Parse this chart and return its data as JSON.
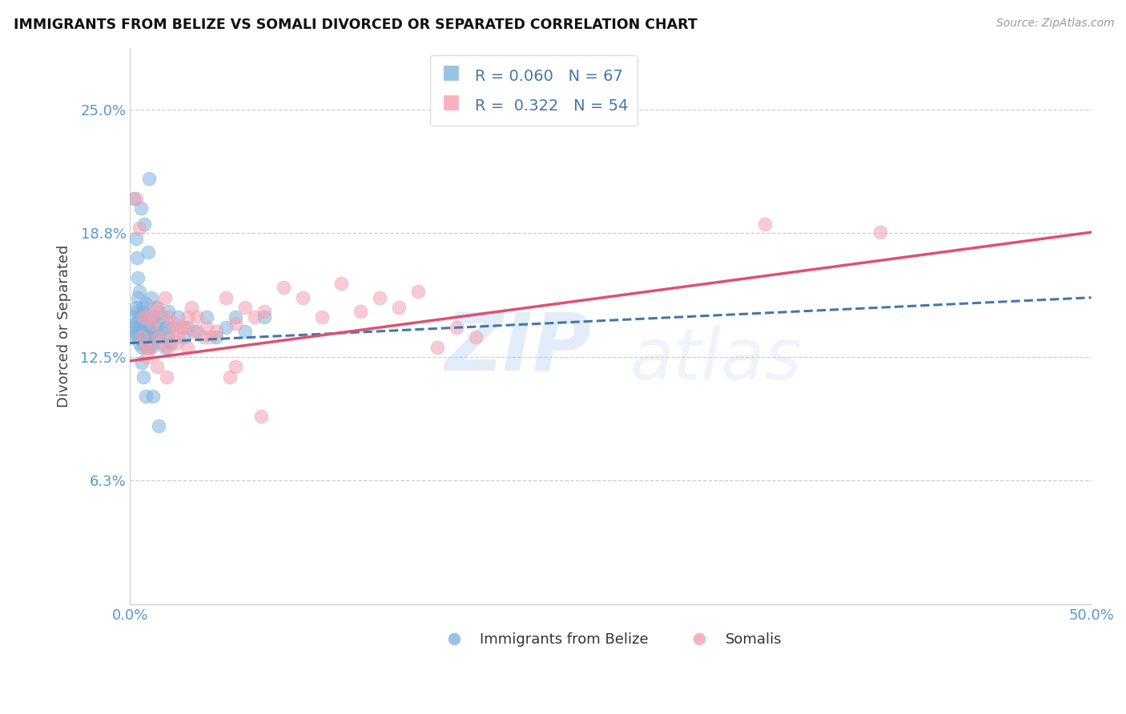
{
  "title": "IMMIGRANTS FROM BELIZE VS SOMALI DIVORCED OR SEPARATED CORRELATION CHART",
  "source_text": "Source: ZipAtlas.com",
  "ylabel": "Divorced or Separated",
  "legend_label_1": "Immigrants from Belize",
  "legend_label_2": "Somalis",
  "R1": 0.06,
  "N1": 67,
  "R2": 0.322,
  "N2": 54,
  "color_blue": "#7EB3E0",
  "color_pink": "#F4A0B0",
  "trendline_blue": "#4477AA",
  "trendline_pink": "#E05070",
  "watermark_zip": "ZIP",
  "watermark_atlas": "atlas",
  "xlim": [
    0.0,
    50.0
  ],
  "ylim": [
    0.0,
    28.125
  ],
  "xticks": [
    0.0,
    10.0,
    20.0,
    30.0,
    40.0,
    50.0
  ],
  "yticks": [
    0.0,
    6.25,
    12.5,
    18.75,
    25.0
  ],
  "ytick_labels": [
    "",
    "6.3%",
    "12.5%",
    "18.8%",
    "25.0%"
  ],
  "blue_trend_x0": 0.0,
  "blue_trend_y0": 13.2,
  "blue_trend_x1": 50.0,
  "blue_trend_y1": 15.5,
  "pink_trend_x0": 0.0,
  "pink_trend_y0": 12.3,
  "pink_trend_x1": 50.0,
  "pink_trend_y1": 18.8,
  "scatter_blue_x": [
    0.1,
    0.15,
    0.2,
    0.25,
    0.3,
    0.3,
    0.35,
    0.4,
    0.4,
    0.45,
    0.5,
    0.5,
    0.55,
    0.6,
    0.6,
    0.65,
    0.7,
    0.7,
    0.75,
    0.8,
    0.8,
    0.85,
    0.9,
    0.9,
    0.95,
    1.0,
    1.0,
    1.1,
    1.1,
    1.2,
    1.2,
    1.3,
    1.4,
    1.5,
    1.5,
    1.6,
    1.7,
    1.8,
    1.9,
    2.0,
    2.0,
    2.1,
    2.2,
    2.5,
    2.8,
    3.0,
    3.5,
    4.0,
    4.5,
    5.0,
    5.5,
    6.0,
    7.0,
    0.2,
    0.3,
    0.4,
    0.5,
    0.6,
    0.7,
    0.8,
    1.0,
    1.2,
    1.5,
    0.35,
    0.55,
    0.75,
    0.95
  ],
  "scatter_blue_y": [
    13.5,
    14.0,
    14.5,
    13.8,
    15.0,
    14.2,
    14.8,
    13.5,
    15.5,
    14.0,
    13.2,
    14.5,
    13.8,
    13.0,
    14.2,
    15.0,
    13.5,
    14.8,
    13.2,
    14.0,
    15.2,
    13.5,
    13.0,
    14.5,
    13.8,
    13.5,
    14.0,
    15.5,
    13.0,
    14.5,
    13.2,
    14.0,
    15.0,
    13.5,
    14.2,
    13.8,
    14.5,
    13.0,
    14.0,
    13.5,
    14.8,
    13.2,
    14.0,
    14.5,
    13.5,
    14.0,
    13.8,
    14.5,
    13.5,
    14.0,
    14.5,
    13.8,
    14.5,
    20.5,
    18.5,
    16.5,
    15.8,
    12.2,
    11.5,
    10.5,
    21.5,
    10.5,
    9.0,
    17.5,
    20.0,
    19.2,
    17.8
  ],
  "scatter_pink_x": [
    0.3,
    0.5,
    0.7,
    0.8,
    1.0,
    1.0,
    1.2,
    1.3,
    1.5,
    1.5,
    1.7,
    1.8,
    2.0,
    2.0,
    2.2,
    2.3,
    2.5,
    2.7,
    3.0,
    3.0,
    3.2,
    3.5,
    3.8,
    4.0,
    4.5,
    5.0,
    5.5,
    6.0,
    6.5,
    7.0,
    8.0,
    9.0,
    10.0,
    11.0,
    12.0,
    13.0,
    14.0,
    15.0,
    16.0,
    17.0,
    18.0,
    0.6,
    0.9,
    1.4,
    1.9,
    2.4,
    2.8,
    3.3,
    4.2,
    5.2,
    6.8,
    33.0,
    39.0,
    5.5
  ],
  "scatter_pink_y": [
    20.5,
    19.0,
    14.5,
    13.0,
    14.5,
    13.0,
    14.2,
    15.0,
    13.5,
    14.8,
    13.2,
    15.5,
    13.0,
    14.5,
    13.8,
    14.2,
    13.5,
    14.0,
    14.5,
    13.0,
    15.0,
    14.5,
    13.5,
    14.0,
    13.8,
    15.5,
    14.2,
    15.0,
    14.5,
    14.8,
    16.0,
    15.5,
    14.5,
    16.2,
    14.8,
    15.5,
    15.0,
    15.8,
    13.0,
    14.0,
    13.5,
    13.5,
    12.5,
    12.0,
    11.5,
    13.2,
    14.0,
    13.8,
    13.5,
    11.5,
    9.5,
    19.2,
    18.8,
    12.0
  ]
}
